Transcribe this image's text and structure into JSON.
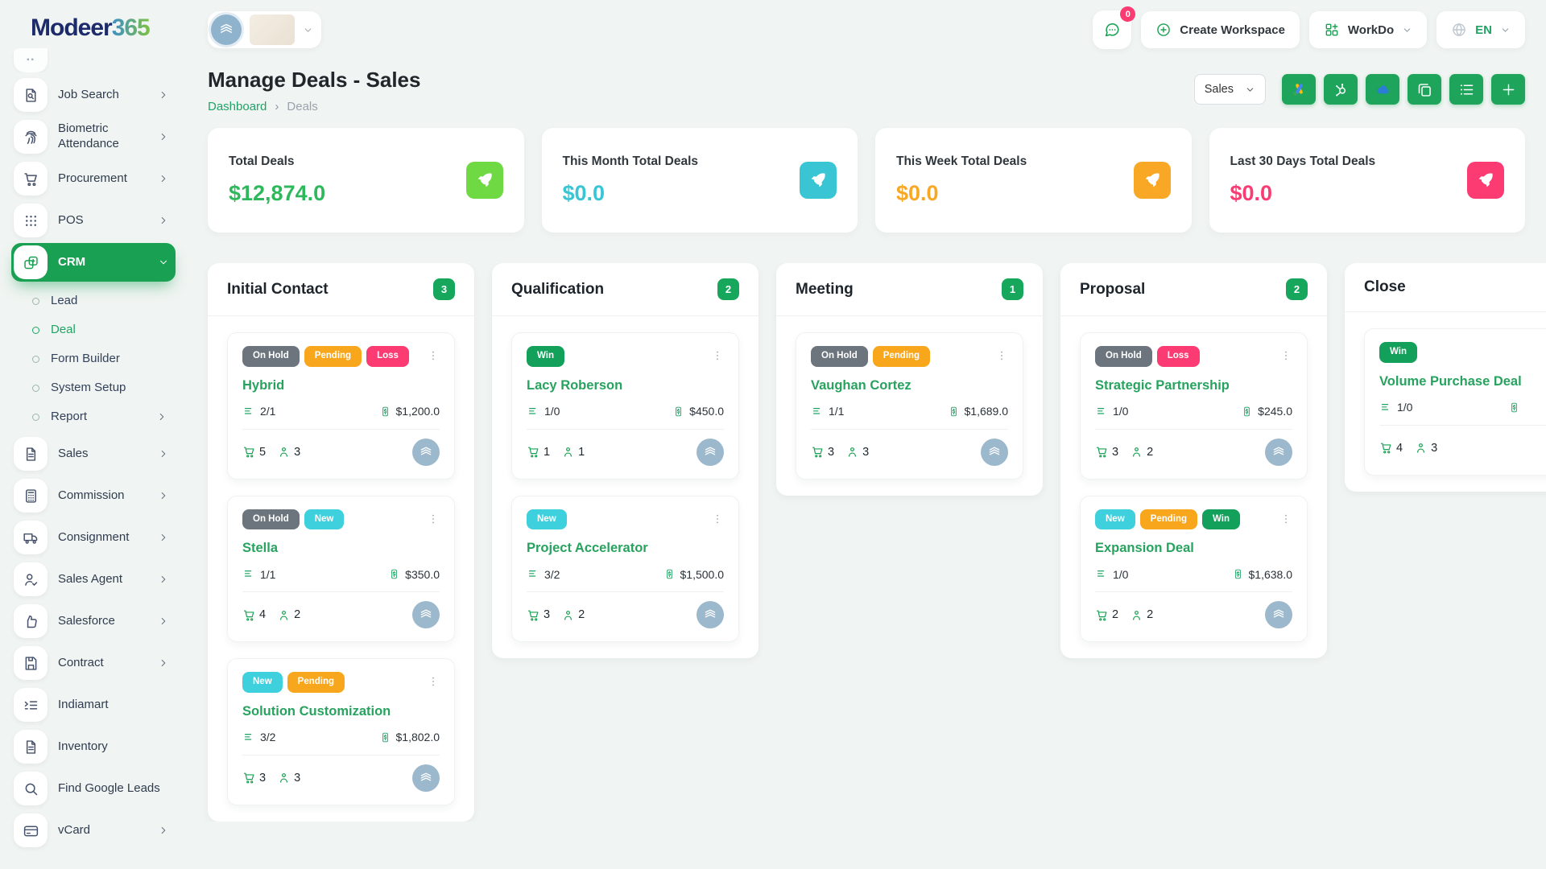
{
  "brand": {
    "name": "Modeer",
    "suffix": "365"
  },
  "topbar": {
    "messages_badge": "0",
    "create_workspace": "Create Workspace",
    "app_menu": "WorkDo",
    "language": "EN"
  },
  "page_header": {
    "title": "Manage Deals - Sales",
    "breadcrumb_home": "Dashboard",
    "breadcrumb_sep": "›",
    "breadcrumb_current": "Deals"
  },
  "toolbar": {
    "pipeline_value": "Sales",
    "buttons": [
      {
        "icon": "google-ads"
      },
      {
        "icon": "hubspot"
      },
      {
        "icon": "onedrive"
      },
      {
        "icon": "duplicate"
      },
      {
        "icon": "list"
      },
      {
        "icon": "plus"
      }
    ]
  },
  "stats": [
    {
      "label": "Total Deals",
      "value": "$12,874.0",
      "value_color": "#2eb85c",
      "icon": "rocket",
      "icon_bg": "#6fd944"
    },
    {
      "label": "This Month Total Deals",
      "value": "$0.0",
      "value_color": "#39c5d4",
      "icon": "rocket",
      "icon_bg": "#39c5d4"
    },
    {
      "label": "This Week Total Deals",
      "value": "$0.0",
      "value_color": "#f9a826",
      "icon": "rocket",
      "icon_bg": "#f9a826"
    },
    {
      "label": "Last 30 Days Total Deals",
      "value": "$0.0",
      "value_color": "#fb3b72",
      "icon": "rocket",
      "icon_bg": "#fb3b72"
    }
  ],
  "board": {
    "label_colors": {
      "On Hold": "#6c757d",
      "Pending": "#f8a61b",
      "Loss": "#fb3b72",
      "New": "#3fd0dd",
      "Win": "#13a05a"
    },
    "columns": [
      {
        "title": "Initial Contact",
        "count": "3",
        "cards": [
          {
            "labels": [
              "On Hold",
              "Pending",
              "Loss"
            ],
            "title": "Hybrid",
            "tasks": "2/1",
            "price": "$1,200.0",
            "products": "5",
            "users": "3"
          },
          {
            "labels": [
              "On Hold",
              "New"
            ],
            "title": "Stella",
            "tasks": "1/1",
            "price": "$350.0",
            "products": "4",
            "users": "2"
          },
          {
            "labels": [
              "New",
              "Pending"
            ],
            "title": "Solution Customization",
            "tasks": "3/2",
            "price": "$1,802.0",
            "products": "3",
            "users": "3"
          }
        ]
      },
      {
        "title": "Qualification",
        "count": "2",
        "cards": [
          {
            "labels": [
              "Win"
            ],
            "title": "Lacy Roberson",
            "tasks": "1/0",
            "price": "$450.0",
            "products": "1",
            "users": "1"
          },
          {
            "labels": [
              "New"
            ],
            "title": "Project Accelerator",
            "tasks": "3/2",
            "price": "$1,500.0",
            "products": "3",
            "users": "2"
          }
        ]
      },
      {
        "title": "Meeting",
        "count": "1",
        "cards": [
          {
            "labels": [
              "On Hold",
              "Pending"
            ],
            "title": "Vaughan Cortez",
            "tasks": "1/1",
            "price": "$1,689.0",
            "products": "3",
            "users": "3"
          }
        ]
      },
      {
        "title": "Proposal",
        "count": "2",
        "cards": [
          {
            "labels": [
              "On Hold",
              "Loss"
            ],
            "title": "Strategic Partnership",
            "tasks": "1/0",
            "price": "$245.0",
            "products": "3",
            "users": "2"
          },
          {
            "labels": [
              "New",
              "Pending",
              "Win"
            ],
            "title": "Expansion Deal",
            "tasks": "1/0",
            "price": "$1,638.0",
            "products": "2",
            "users": "2"
          }
        ]
      },
      {
        "title": "Close",
        "count": null,
        "cards": [
          {
            "labels": [
              "Win"
            ],
            "title": "Volume Purchase Deal",
            "tasks": "1/0",
            "price": "",
            "products": "4",
            "users": "3"
          }
        ]
      }
    ]
  },
  "sidebar": {
    "items": [
      {
        "label": "Job Search",
        "icon": "doc-search",
        "chevron": true
      },
      {
        "label": "Biometric Attendance",
        "icon": "fingerprint",
        "chevron": true
      },
      {
        "label": "Procurement",
        "icon": "cart",
        "chevron": true
      },
      {
        "label": "POS",
        "icon": "grid-dots",
        "chevron": true
      },
      {
        "label": "CRM",
        "icon": "crm",
        "chevron": "down",
        "active": true,
        "children": [
          {
            "label": "Lead"
          },
          {
            "label": "Deal",
            "active": true
          },
          {
            "label": "Form Builder"
          },
          {
            "label": "System Setup"
          },
          {
            "label": "Report",
            "chevron": true
          }
        ]
      },
      {
        "label": "Sales",
        "icon": "doc",
        "chevron": true
      },
      {
        "label": "Commission",
        "icon": "calculator",
        "chevron": true
      },
      {
        "label": "Consignment",
        "icon": "truck",
        "chevron": true
      },
      {
        "label": "Sales Agent",
        "icon": "user-check",
        "chevron": true
      },
      {
        "label": "Salesforce",
        "icon": "thumbs-up",
        "chevron": true
      },
      {
        "label": "Contract",
        "icon": "save",
        "chevron": true
      },
      {
        "label": "Indiamart",
        "icon": "list-indent",
        "chevron": false
      },
      {
        "label": "Inventory",
        "icon": "doc",
        "chevron": false
      },
      {
        "label": "Find Google Leads",
        "icon": "search",
        "chevron": false
      },
      {
        "label": "vCard",
        "icon": "card",
        "chevron": true
      }
    ]
  }
}
